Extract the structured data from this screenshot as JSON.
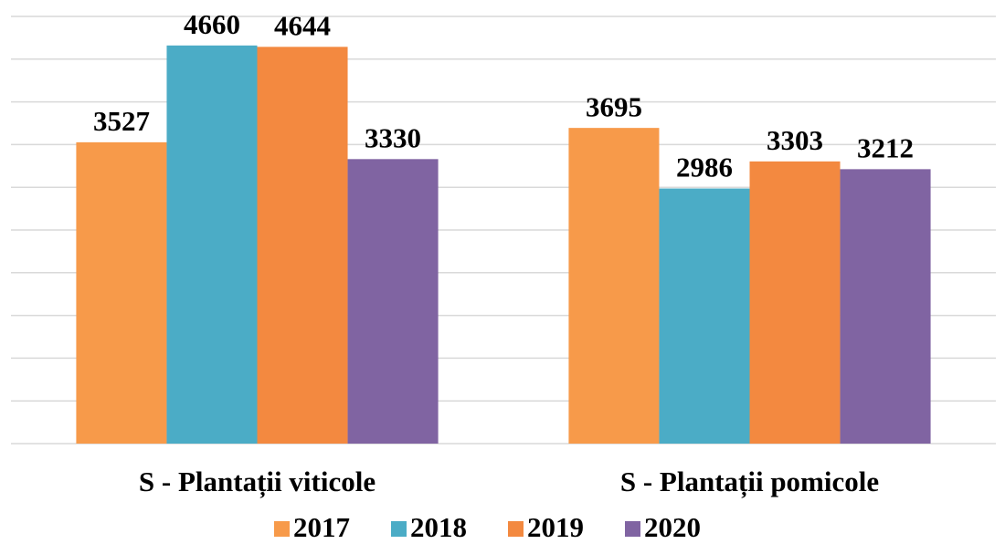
{
  "chart_data": {
    "type": "bar",
    "categories": [
      "S - Plantații viticole",
      "S - Plantații pomicole"
    ],
    "series": [
      {
        "name": "2017",
        "color": "#f79a4a",
        "values": [
          3527,
          3695
        ]
      },
      {
        "name": "2018",
        "color": "#4bacc6",
        "values": [
          4660,
          2986
        ]
      },
      {
        "name": "2019",
        "color": "#f38940",
        "values": [
          4644,
          3303
        ]
      },
      {
        "name": "2020",
        "color": "#8064a2",
        "values": [
          3330,
          3212
        ]
      }
    ],
    "ylim": [
      0,
      5000
    ],
    "yticks": [
      0,
      500,
      1000,
      1500,
      2000,
      2500,
      3000,
      3500,
      4000,
      4500,
      5000
    ],
    "grid": true,
    "legend": "bottom"
  }
}
